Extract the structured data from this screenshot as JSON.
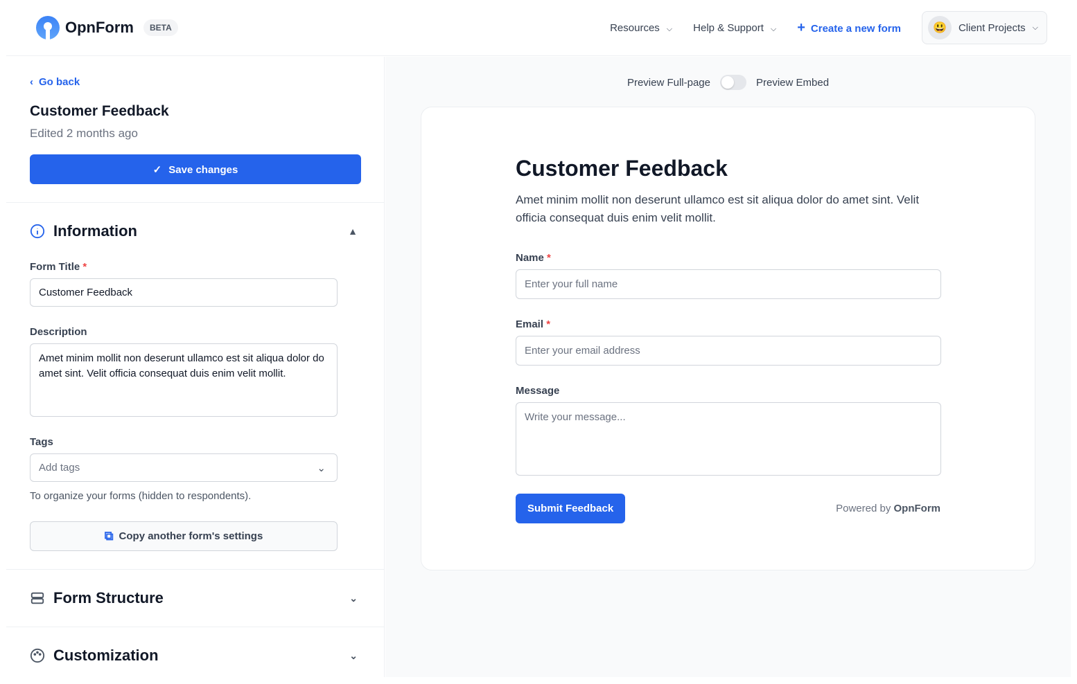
{
  "header": {
    "brand": "OpnForm",
    "badge": "BETA",
    "nav": [
      {
        "label": "Resources"
      },
      {
        "label": "Help & Support"
      }
    ],
    "create_label": "Create a new form",
    "workspace": {
      "emoji": "😃",
      "label": "Client Projects"
    }
  },
  "sidebar": {
    "back": "Go back",
    "title": "Customer Feedback",
    "edited": "Edited 2 months ago",
    "save": "Save changes",
    "sections": [
      {
        "title": "Information",
        "icon": "info-icon"
      },
      {
        "title": "Form Structure",
        "icon": "rows-icon"
      },
      {
        "title": "Customization",
        "icon": "palette-icon"
      }
    ],
    "form_title_label": "Form Title",
    "form_title_value": "Customer Feedback",
    "description_label": "Description",
    "description_value": "Amet minim mollit non deserunt ullamco est sit aliqua dolor do amet sint. Velit officia consequat duis enim velit mollit.",
    "tags_label": "Tags",
    "tags_placeholder": "Add tags",
    "tags_help": "To organize your forms (hidden to respondents).",
    "copy": "Copy another form's settings"
  },
  "preview": {
    "full": "Preview Full-page",
    "embed": "Preview Embed",
    "embed_enabled": false,
    "title": "Customer Feedback",
    "description": "Amet minim mollit non deserunt ullamco est sit aliqua dolor do amet sint. Velit officia consequat duis enim velit mollit.",
    "fields": [
      {
        "label": "Name",
        "required": "*",
        "placeholder": "Enter your full name"
      },
      {
        "label": "Email",
        "required": "*",
        "placeholder": "Enter your email address"
      },
      {
        "label": "Message",
        "placeholder": "Write your message..."
      }
    ],
    "submit": "Submit Feedback",
    "powered": "Powered by",
    "powered_brand": "OpnForm"
  },
  "colors": {
    "accent": "#2563eb",
    "required": "#ef4444"
  }
}
